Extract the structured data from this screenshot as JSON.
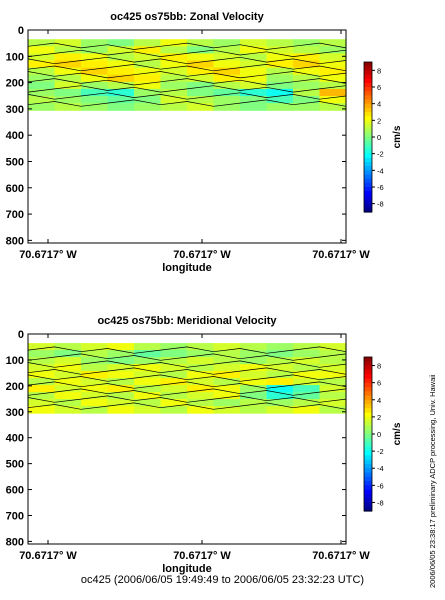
{
  "chart_data": [
    {
      "type": "heatmap",
      "title": "oc425 os75bb: Zonal Velocity",
      "xlabel": "longitude",
      "ylabel": "",
      "x_tick_labels": [
        "70.6717° W",
        "70.6717° W",
        "70.6717° W"
      ],
      "y_ticks": [
        0,
        100,
        200,
        300,
        400,
        500,
        600,
        700,
        800
      ],
      "ylim": [
        810,
        0
      ],
      "depth_range": [
        35,
        305
      ],
      "colorbar": {
        "label": "cm/s",
        "ticks": [
          8,
          6,
          4,
          2,
          0,
          -2,
          -4,
          -6,
          -8
        ],
        "range": [
          -9,
          9
        ]
      },
      "depths": [
        40,
        70,
        100,
        130,
        160,
        190,
        220,
        250,
        280,
        300
      ],
      "values": [
        [
          1.0,
          1.5,
          0.5,
          0.0,
          1.0,
          2.0,
          1.0,
          0.5,
          1.5,
          1.0,
          0.5,
          1.0
        ],
        [
          2.0,
          1.0,
          0.5,
          1.5,
          2.5,
          1.0,
          0.0,
          1.0,
          2.0,
          1.5,
          1.0,
          0.5
        ],
        [
          1.5,
          2.5,
          2.0,
          1.0,
          1.5,
          2.5,
          2.0,
          1.5,
          1.0,
          2.0,
          2.5,
          1.5
        ],
        [
          2.5,
          3.0,
          2.5,
          2.0,
          1.0,
          2.0,
          3.0,
          2.0,
          1.5,
          2.5,
          3.0,
          2.0
        ],
        [
          1.0,
          2.0,
          3.0,
          2.5,
          2.0,
          1.5,
          2.5,
          3.0,
          2.0,
          1.0,
          2.0,
          2.5
        ],
        [
          0.5,
          1.0,
          2.0,
          3.0,
          2.5,
          1.0,
          1.5,
          2.5,
          2.0,
          0.5,
          1.0,
          2.0
        ],
        [
          0.0,
          1.5,
          0.5,
          1.0,
          2.0,
          0.5,
          0.0,
          1.0,
          1.5,
          0.0,
          0.5,
          1.0
        ],
        [
          0.5,
          0.0,
          -1.0,
          -1.5,
          0.5,
          1.0,
          0.0,
          -0.5,
          -1.5,
          -2.0,
          1.0,
          3.5
        ],
        [
          1.0,
          0.5,
          0.0,
          -0.5,
          0.0,
          1.5,
          1.0,
          0.5,
          0.0,
          -1.0,
          0.0,
          2.0
        ],
        [
          0.5,
          1.0,
          0.5,
          0.0,
          0.5,
          1.0,
          1.5,
          0.5,
          0.0,
          0.5,
          0.5,
          1.0
        ]
      ]
    },
    {
      "type": "heatmap",
      "title": "oc425 os75bb: Meridional Velocity",
      "xlabel": "longitude",
      "ylabel": "",
      "x_tick_labels": [
        "70.6717° W",
        "70.6717° W",
        "70.6717° W"
      ],
      "y_ticks": [
        0,
        100,
        200,
        300,
        400,
        500,
        600,
        700,
        800
      ],
      "ylim": [
        810,
        0
      ],
      "depth_range": [
        35,
        305
      ],
      "colorbar": {
        "label": "cm/s",
        "ticks": [
          8,
          6,
          4,
          2,
          0,
          -2,
          -4,
          -6,
          -8
        ],
        "range": [
          -9,
          9
        ]
      },
      "depths": [
        40,
        70,
        100,
        130,
        160,
        190,
        220,
        250,
        280,
        300
      ],
      "values": [
        [
          1.5,
          1.0,
          1.5,
          2.0,
          1.0,
          0.5,
          1.0,
          1.5,
          1.0,
          0.5,
          1.0,
          1.5
        ],
        [
          0.5,
          0.0,
          1.0,
          0.5,
          -0.5,
          0.0,
          0.5,
          1.0,
          0.5,
          0.0,
          0.5,
          1.0
        ],
        [
          1.0,
          1.5,
          0.5,
          0.0,
          0.5,
          1.0,
          1.5,
          1.0,
          0.5,
          1.0,
          1.5,
          1.0
        ],
        [
          1.5,
          2.0,
          1.0,
          1.5,
          2.0,
          1.5,
          1.0,
          1.5,
          2.0,
          1.5,
          1.0,
          1.5
        ],
        [
          2.0,
          1.5,
          2.5,
          2.0,
          1.5,
          1.0,
          2.0,
          2.5,
          1.5,
          1.0,
          2.0,
          2.0
        ],
        [
          1.0,
          2.0,
          1.5,
          1.0,
          2.0,
          2.5,
          1.5,
          1.0,
          2.0,
          2.5,
          1.5,
          1.0
        ],
        [
          2.5,
          1.5,
          2.0,
          2.5,
          1.0,
          1.5,
          2.5,
          2.0,
          0.5,
          -2.0,
          -1.0,
          1.5
        ],
        [
          1.0,
          2.0,
          1.5,
          1.0,
          2.0,
          1.0,
          1.5,
          2.0,
          0.0,
          -1.5,
          -0.5,
          1.0
        ],
        [
          1.5,
          1.0,
          2.0,
          1.5,
          1.0,
          2.0,
          1.0,
          0.5,
          1.0,
          0.5,
          1.0,
          1.5
        ],
        [
          2.0,
          1.5,
          1.0,
          2.0,
          1.5,
          1.0,
          2.0,
          1.5,
          1.0,
          1.5,
          2.0,
          1.0
        ]
      ]
    }
  ],
  "side_note": "2006/06/05 23:38:17      preliminary ADCP processing,  Univ. Hawaii",
  "footer": "oc425 (2006/06/05 19:49:49 to 2006/06/05 23:32:23 UTC)"
}
